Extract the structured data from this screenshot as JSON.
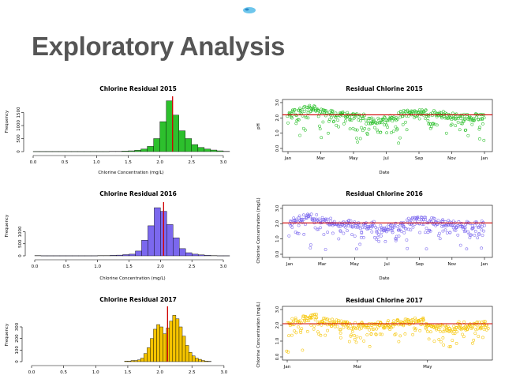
{
  "slide": {
    "title": "Exploratory Analysis",
    "logo_icon": "water-drop-logo-icon"
  },
  "chart_data": [
    {
      "type": "bar",
      "subtype": "histogram",
      "title": "Chlorine Residual 2015",
      "xlabel": "Chlorine Concentration (mg/L)",
      "ylabel": "Frequency",
      "xlim": [
        0,
        3.1
      ],
      "ylim": [
        0,
        2000
      ],
      "xticks": [
        "0.0",
        "0.5",
        "1.0",
        "1.5",
        "2.0",
        "2.5",
        "3.0"
      ],
      "yticks": [
        "0",
        "500",
        "1000",
        "1500"
      ],
      "bin_width": 0.1,
      "bins_start": [
        0.0,
        0.1,
        0.2,
        0.3,
        0.4,
        0.5,
        0.6,
        0.7,
        0.8,
        0.9,
        1.0,
        1.1,
        1.2,
        1.3,
        1.4,
        1.5,
        1.6,
        1.7,
        1.8,
        1.9,
        2.0,
        2.1,
        2.2,
        2.3,
        2.4,
        2.5,
        2.6,
        2.7,
        2.8,
        2.9,
        3.0
      ],
      "values": [
        5,
        5,
        5,
        5,
        5,
        5,
        5,
        5,
        5,
        5,
        5,
        5,
        10,
        10,
        20,
        30,
        50,
        100,
        200,
        500,
        1150,
        1950,
        1400,
        800,
        500,
        270,
        160,
        100,
        60,
        30,
        10
      ],
      "bar_color": "#2dc02d",
      "mean_line": 2.2,
      "mean_line_color": "#d00000"
    },
    {
      "type": "scatter",
      "title": "Residual Chlorine 2015",
      "xlabel": "Date",
      "ylabel": "pH",
      "xticks": [
        "Jan",
        "Mar",
        "May",
        "Jul",
        "Sep",
        "Nov",
        "Jan"
      ],
      "yticks": [
        "0.0",
        "1.0",
        "2.0",
        "3.0"
      ],
      "ylim": [
        0,
        3.1
      ],
      "point_color": "#2dc02d",
      "mean_line": 2.2,
      "mean_line_color": "#d00000"
    },
    {
      "type": "bar",
      "subtype": "histogram",
      "title": "Chlorine Residual 2016",
      "xlabel": "Chlorine Concentration (mg/L)",
      "ylabel": "Frequency",
      "xlim": [
        0,
        3.1
      ],
      "ylim": [
        0,
        2100
      ],
      "xticks": [
        "0.0",
        "0.5",
        "1.0",
        "1.5",
        "2.0",
        "2.5",
        "3.0"
      ],
      "yticks": [
        "0",
        "500",
        "1000"
      ],
      "bin_width": 0.1,
      "bins_start": [
        0.0,
        0.1,
        0.2,
        0.3,
        0.4,
        0.5,
        0.6,
        0.7,
        0.8,
        0.9,
        1.0,
        1.1,
        1.2,
        1.3,
        1.4,
        1.5,
        1.6,
        1.7,
        1.8,
        1.9,
        2.0,
        2.1,
        2.2,
        2.3,
        2.4,
        2.5,
        2.6,
        2.7,
        2.8,
        2.9,
        3.0
      ],
      "values": [
        10,
        5,
        5,
        5,
        5,
        5,
        5,
        5,
        5,
        5,
        10,
        10,
        20,
        30,
        50,
        70,
        200,
        650,
        1250,
        2000,
        1850,
        1300,
        750,
        300,
        130,
        70,
        40,
        20,
        10,
        5,
        5
      ],
      "bar_color": "#7b68ee",
      "mean_line": 2.05,
      "mean_line_color": "#d00000"
    },
    {
      "type": "scatter",
      "title": "Residual Chlorine 2016",
      "xlabel": "Date",
      "ylabel": "Chlorine Concentration (mg/L)",
      "xticks": [
        "Jan",
        "Mar",
        "May",
        "Jul",
        "Sep",
        "Nov",
        "Jan"
      ],
      "yticks": [
        "0.0",
        "1.0",
        "2.0",
        "3.0"
      ],
      "ylim": [
        0,
        3.1
      ],
      "point_color": "#7b68ee",
      "mean_line": 2.05,
      "mean_line_color": "#d00000"
    },
    {
      "type": "bar",
      "subtype": "histogram",
      "title": "Chlorine Residual 2017",
      "xlabel": "",
      "ylabel": "Frequency",
      "xlim": [
        0,
        3.1
      ],
      "ylim": [
        0,
        450
      ],
      "xticks": [
        "0.0",
        "0.5",
        "1.0",
        "1.5",
        "2.0",
        "2.5",
        "3.0"
      ],
      "yticks": [
        "0",
        "100",
        "200",
        "300"
      ],
      "bin_width": 0.05,
      "bins_start": [
        1.45,
        1.5,
        1.55,
        1.6,
        1.65,
        1.7,
        1.75,
        1.8,
        1.85,
        1.9,
        1.95,
        2.0,
        2.05,
        2.1,
        2.15,
        2.2,
        2.25,
        2.3,
        2.35,
        2.4,
        2.45,
        2.5,
        2.55,
        2.6,
        2.65,
        2.7,
        2.75
      ],
      "values": [
        5,
        5,
        10,
        10,
        15,
        30,
        70,
        120,
        200,
        280,
        320,
        300,
        240,
        290,
        350,
        400,
        370,
        300,
        220,
        140,
        80,
        50,
        30,
        20,
        10,
        5,
        3
      ],
      "bar_color": "#f5c400",
      "mean_line": 2.12,
      "mean_line_color": "#d00000"
    },
    {
      "type": "scatter",
      "title": "Residual Chlorine 2017",
      "xlabel": "",
      "ylabel": "Chlorine Concentration (mg/L)",
      "xticks": [
        "Jan",
        "Mar",
        "May"
      ],
      "yticks": [
        "0.0",
        "1.0",
        "2.0",
        "3.0"
      ],
      "ylim": [
        0,
        3.1
      ],
      "point_color": "#f5c400",
      "mean_line": 2.1,
      "mean_line_color": "#d00000"
    }
  ]
}
